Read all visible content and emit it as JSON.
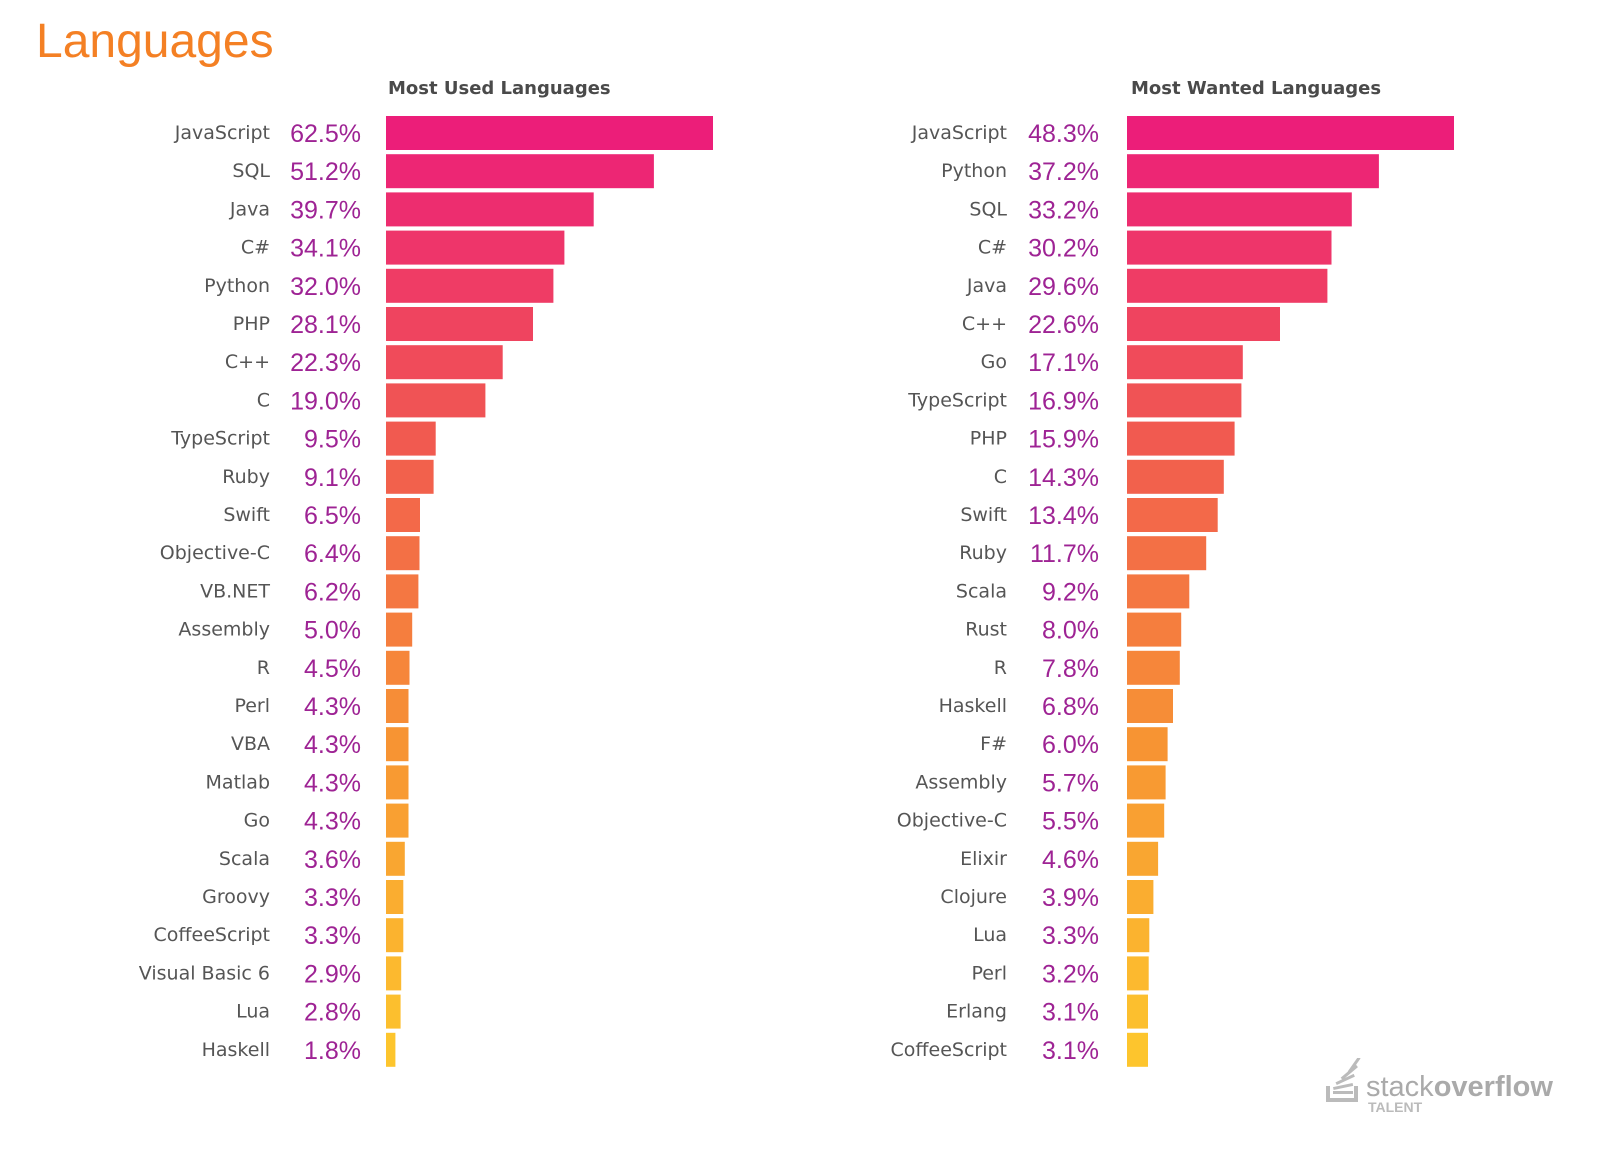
{
  "page_title": "Languages",
  "chart_data": [
    {
      "type": "bar",
      "orientation": "horizontal",
      "title": "Most Used Languages",
      "unit": "%",
      "categories": [
        "JavaScript",
        "SQL",
        "Java",
        "C#",
        "Python",
        "PHP",
        "C++",
        "C",
        "TypeScript",
        "Ruby",
        "Swift",
        "Objective-C",
        "VB.NET",
        "Assembly",
        "R",
        "Perl",
        "VBA",
        "Matlab",
        "Go",
        "Scala",
        "Groovy",
        "CoffeeScript",
        "Visual Basic 6",
        "Lua",
        "Haskell"
      ],
      "values": [
        62.5,
        51.2,
        39.7,
        34.1,
        32.0,
        28.1,
        22.3,
        19.0,
        9.5,
        9.1,
        6.5,
        6.4,
        6.2,
        5.0,
        4.5,
        4.3,
        4.3,
        4.3,
        4.3,
        3.6,
        3.3,
        3.3,
        2.9,
        2.8,
        1.8
      ],
      "value_labels": [
        "62.5%",
        "51.2%",
        "39.7%",
        "34.1%",
        "32.0%",
        "28.1%",
        "22.3%",
        "19.0%",
        "9.5%",
        "9.1%",
        "6.5%",
        "6.4%",
        "6.2%",
        "5.0%",
        "4.5%",
        "4.3%",
        "4.3%",
        "4.3%",
        "4.3%",
        "3.6%",
        "3.3%",
        "3.3%",
        "2.9%",
        "2.8%",
        "1.8%"
      ]
    },
    {
      "type": "bar",
      "orientation": "horizontal",
      "title": "Most Wanted Languages",
      "unit": "%",
      "categories": [
        "JavaScript",
        "Python",
        "SQL",
        "C#",
        "Java",
        "C++",
        "Go",
        "TypeScript",
        "PHP",
        "C",
        "Swift",
        "Ruby",
        "Scala",
        "Rust",
        "R",
        "Haskell",
        "F#",
        "Assembly",
        "Objective-C",
        "Elixir",
        "Clojure",
        "Lua",
        "Perl",
        "Erlang",
        "CoffeeScript"
      ],
      "values": [
        48.3,
        37.2,
        33.2,
        30.2,
        29.6,
        22.6,
        17.1,
        16.9,
        15.9,
        14.3,
        13.4,
        11.7,
        9.2,
        8.0,
        7.8,
        6.8,
        6.0,
        5.7,
        5.5,
        4.6,
        3.9,
        3.3,
        3.2,
        3.1,
        3.1
      ],
      "value_labels": [
        "48.3%",
        "37.2%",
        "33.2%",
        "30.2%",
        "29.6%",
        "22.6%",
        "17.1%",
        "16.9%",
        "15.9%",
        "14.3%",
        "13.4%",
        "11.7%",
        "9.2%",
        "8.0%",
        "7.8%",
        "6.8%",
        "6.0%",
        "5.7%",
        "5.5%",
        "4.6%",
        "3.9%",
        "3.3%",
        "3.2%",
        "3.1%",
        "3.1%"
      ]
    }
  ],
  "colors": {
    "title": "#F48024",
    "value_text": "#9E2394",
    "gradient": [
      "#EC1E79",
      "#F15A50",
      "#F79433",
      "#FDC52D"
    ]
  },
  "logo": {
    "brand": "stack overflow",
    "sub": "TALENT"
  }
}
